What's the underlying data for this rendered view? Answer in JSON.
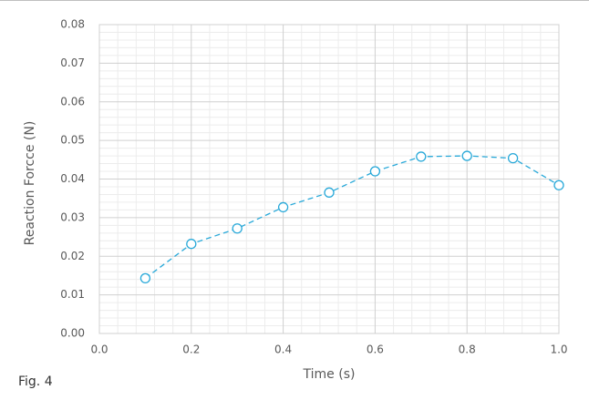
{
  "chart_data": {
    "type": "line",
    "x_label": "Time (s)",
    "y_label": "Reaction Forcce (N)",
    "caption": "Fig. 4",
    "x": [
      0.1,
      0.2,
      0.3,
      0.4,
      0.5,
      0.6,
      0.7,
      0.8,
      0.9,
      1.0
    ],
    "series": [
      {
        "color": "#29a9d9",
        "values": [
          0.0143,
          0.0232,
          0.0272,
          0.0327,
          0.0365,
          0.042,
          0.0458,
          0.046,
          0.0454,
          0.0384
        ]
      }
    ],
    "xlim": [
      0,
      1
    ],
    "ylim": [
      0,
      0.08
    ],
    "xticks": [
      {
        "value": 0,
        "label": "0.0"
      },
      {
        "value": 0.2,
        "label": "0.2"
      },
      {
        "value": 0.4,
        "label": "0.4"
      },
      {
        "value": 0.6,
        "label": "0.6"
      },
      {
        "value": 0.8,
        "label": "0.8"
      },
      {
        "value": 1,
        "label": "1.0"
      }
    ],
    "yticks": [
      {
        "value": 0,
        "label": "0.00"
      },
      {
        "value": 0.01,
        "label": "0.01"
      },
      {
        "value": 0.02,
        "label": "0.02"
      },
      {
        "value": 0.03,
        "label": "0.03"
      },
      {
        "value": 0.04,
        "label": "0.04"
      },
      {
        "value": 0.05,
        "label": "0.05"
      },
      {
        "value": 0.06,
        "label": "0.06"
      },
      {
        "value": 0.07,
        "label": "0.07"
      },
      {
        "value": 0.08,
        "label": "0.08"
      }
    ],
    "grid": true,
    "minor_grid": true,
    "line_style": "dashed",
    "marker": "open-circle"
  }
}
